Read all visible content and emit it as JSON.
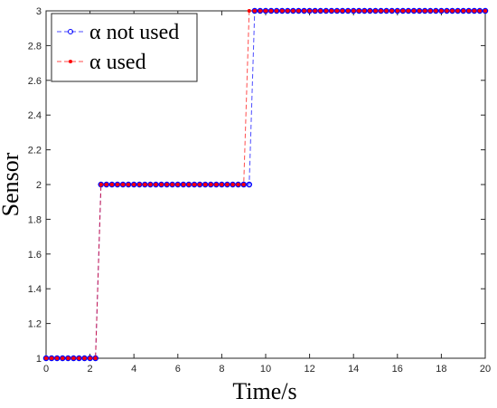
{
  "chart_data": {
    "type": "line",
    "xlabel": "Time/s",
    "ylabel": "Sensor",
    "x": [
      0,
      0.25,
      0.5,
      0.75,
      1,
      1.25,
      1.5,
      1.75,
      2,
      2.25,
      2.5,
      2.75,
      3,
      3.25,
      3.5,
      3.75,
      4,
      4.25,
      4.5,
      4.75,
      5,
      5.25,
      5.5,
      5.75,
      6,
      6.25,
      6.5,
      6.75,
      7,
      7.25,
      7.5,
      7.75,
      8,
      8.25,
      8.5,
      8.75,
      9,
      9.25,
      9.5,
      9.75,
      10,
      10.25,
      10.5,
      10.75,
      11,
      11.25,
      11.5,
      11.75,
      12,
      12.25,
      12.5,
      12.75,
      13,
      13.25,
      13.5,
      13.75,
      14,
      14.25,
      14.5,
      14.75,
      15,
      15.25,
      15.5,
      15.75,
      16,
      16.25,
      16.5,
      16.75,
      17,
      17.25,
      17.5,
      17.75,
      18,
      18.25,
      18.5,
      18.75,
      19,
      19.25,
      19.5,
      19.75,
      20
    ],
    "series": [
      {
        "name": "α not used",
        "color": "#0000ff",
        "marker": "circle",
        "values": [
          1,
          1,
          1,
          1,
          1,
          1,
          1,
          1,
          1,
          1,
          2,
          2,
          2,
          2,
          2,
          2,
          2,
          2,
          2,
          2,
          2,
          2,
          2,
          2,
          2,
          2,
          2,
          2,
          2,
          2,
          2,
          2,
          2,
          2,
          2,
          2,
          2,
          2,
          3,
          3,
          3,
          3,
          3,
          3,
          3,
          3,
          3,
          3,
          3,
          3,
          3,
          3,
          3,
          3,
          3,
          3,
          3,
          3,
          3,
          3,
          3,
          3,
          3,
          3,
          3,
          3,
          3,
          3,
          3,
          3,
          3,
          3,
          3,
          3,
          3,
          3,
          3,
          3,
          3,
          3,
          3
        ]
      },
      {
        "name": "α used",
        "color": "#ff0000",
        "marker": "dot",
        "values": [
          1,
          1,
          1,
          1,
          1,
          1,
          1,
          1,
          1,
          1,
          2,
          2,
          2,
          2,
          2,
          2,
          2,
          2,
          2,
          2,
          2,
          2,
          2,
          2,
          2,
          2,
          2,
          2,
          2,
          2,
          2,
          2,
          2,
          2,
          2,
          2,
          2,
          3,
          3,
          3,
          3,
          3,
          3,
          3,
          3,
          3,
          3,
          3,
          3,
          3,
          3,
          3,
          3,
          3,
          3,
          3,
          3,
          3,
          3,
          3,
          3,
          3,
          3,
          3,
          3,
          3,
          3,
          3,
          3,
          3,
          3,
          3,
          3,
          3,
          3,
          3,
          3,
          3,
          3,
          3,
          3
        ]
      }
    ],
    "xlim": [
      0,
      20
    ],
    "xticks": [
      0,
      2,
      4,
      6,
      8,
      10,
      12,
      14,
      16,
      18,
      20
    ],
    "ylim": [
      1,
      3
    ],
    "yticks": [
      1,
      1.2,
      1.4,
      1.6,
      1.8,
      2,
      2.2,
      2.4,
      2.6,
      2.8,
      3
    ],
    "grid": false,
    "legend": "upper-left"
  }
}
